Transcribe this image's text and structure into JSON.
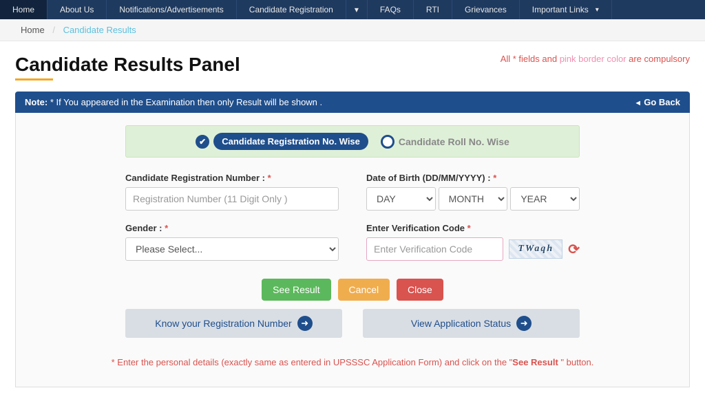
{
  "nav": {
    "items": [
      {
        "label": "Home",
        "active": true
      },
      {
        "label": "About Us"
      },
      {
        "label": "Notifications/Advertisements"
      },
      {
        "label": "Candidate Registration",
        "dropdown": true
      },
      {
        "label": "FAQs"
      },
      {
        "label": "RTI"
      },
      {
        "label": "Grievances"
      },
      {
        "label": "Important Links",
        "dropdown": true,
        "inline_caret": true
      }
    ]
  },
  "breadcrumb": {
    "home": "Home",
    "current": "Candidate Results"
  },
  "page_title": "Candidate Results Panel",
  "required_note": {
    "pre": "All ",
    "star": "*",
    "mid": " fields and ",
    "pink": "pink border color",
    "post": " are compulsory"
  },
  "note_bar": {
    "label": "Note:",
    "text": " * If You appeared in the Examination then only Result will be shown .",
    "go_back": "Go Back"
  },
  "toggle": {
    "opt1": "Candidate Registration No. Wise",
    "opt2": "Candidate Roll No. Wise"
  },
  "form": {
    "reg_label": "Candidate Registration Number :",
    "reg_placeholder": "Registration Number (11 Digit Only )",
    "dob_label": "Date of Birth (DD/MM/YYYY) :",
    "day": "DAY",
    "month": "MONTH",
    "year": "YEAR",
    "gender_label": "Gender :",
    "gender_placeholder": "Please Select...",
    "captcha_label": "Enter Verification Code",
    "captcha_placeholder": "Enter Verification Code",
    "captcha_text": "TWaqh"
  },
  "buttons": {
    "see": "See Result",
    "cancel": "Cancel",
    "close": "Close"
  },
  "wide": {
    "know": "Know your Registration Number",
    "status": "View Application Status"
  },
  "footer": {
    "pre": "* Enter the personal details (exactly same as entered in UPSSSC Application Form) and click on the \"",
    "bold": "See Result ",
    "post": "\" button."
  }
}
